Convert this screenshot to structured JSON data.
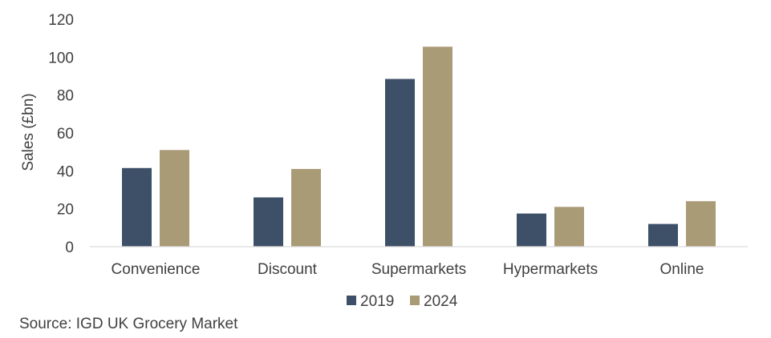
{
  "chart_data": {
    "type": "bar",
    "categories": [
      "Convenience",
      "Discount",
      "Supermarkets",
      "Hypermarkets",
      "Online"
    ],
    "series": [
      {
        "name": "2019",
        "color": "#3e5068",
        "values": [
          41.5,
          26,
          88.5,
          17.5,
          12
        ]
      },
      {
        "name": "2024",
        "color": "#aa9b77",
        "values": [
          51,
          41,
          105.5,
          21,
          24
        ]
      }
    ],
    "title": "",
    "xlabel": "",
    "ylabel": "Sales (£bn)",
    "ylim": [
      0,
      120
    ],
    "yticks": [
      0,
      20,
      40,
      60,
      80,
      100,
      120
    ],
    "grid": false,
    "legend": "bottom-center"
  },
  "source": "Source: IGD UK Grocery Market",
  "colors": {
    "axis": "#d9d9d9",
    "text": "#404040"
  }
}
